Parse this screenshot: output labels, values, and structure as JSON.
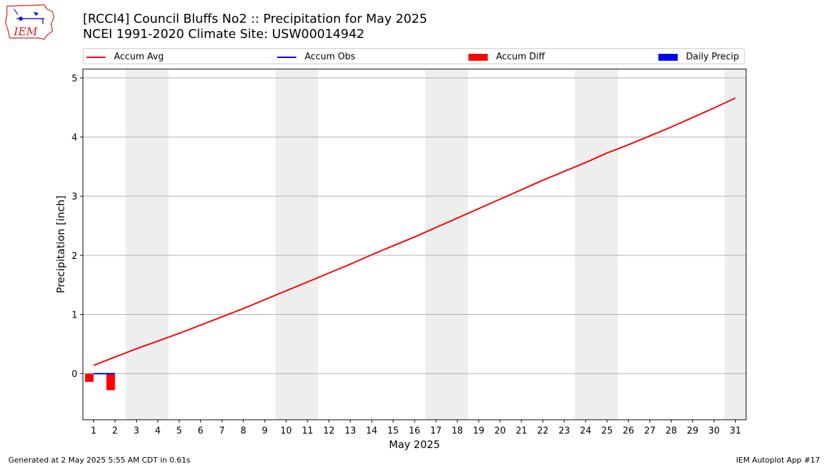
{
  "header": {
    "title_line1": "[RCCI4] Council Bluffs No2 :: Precipitation for May 2025",
    "title_line2": "NCEI 1991-2020 Climate Site: USW00014942"
  },
  "logo": {
    "text": "IEM"
  },
  "legend": {
    "placement": "top, above plot",
    "items": [
      {
        "label": "Accum Avg",
        "kind": "line",
        "color": "#ff0000"
      },
      {
        "label": "Accum Obs",
        "kind": "line",
        "color": "#0000ff"
      },
      {
        "label": "Accum Diff",
        "kind": "box",
        "color": "#ff0000"
      },
      {
        "label": "Daily Precip",
        "kind": "box",
        "color": "#0000ff"
      }
    ]
  },
  "footer": {
    "left": "Generated at 2 May 2025 5:55 AM CDT in 0.61s",
    "right": "IEM Autoplot App #17"
  },
  "chart_data": {
    "type": "line",
    "xlabel": "May 2025",
    "ylabel": "Precipitation [inch]",
    "xlim": [
      0.5,
      31.5
    ],
    "ylim": [
      -0.78,
      5.15
    ],
    "x_ticks": [
      1,
      2,
      3,
      4,
      5,
      6,
      7,
      8,
      9,
      10,
      11,
      12,
      13,
      14,
      15,
      16,
      17,
      18,
      19,
      20,
      21,
      22,
      23,
      24,
      25,
      26,
      27,
      28,
      29,
      30,
      31
    ],
    "y_ticks": [
      0,
      1,
      2,
      3,
      4,
      5
    ],
    "grid": "horizontal",
    "weekend_shading": [
      [
        2.5,
        4.5
      ],
      [
        9.5,
        11.5
      ],
      [
        16.5,
        18.5
      ],
      [
        23.5,
        25.5
      ],
      [
        30.5,
        31.5
      ]
    ],
    "series": [
      {
        "name": "Accum Avg",
        "type": "line",
        "color": "#ff0000",
        "x": [
          1,
          2,
          3,
          4,
          5,
          6,
          7,
          8,
          9,
          10,
          11,
          12,
          13,
          14,
          15,
          16,
          17,
          18,
          19,
          20,
          21,
          22,
          23,
          24,
          25,
          26,
          27,
          28,
          29,
          30,
          31
        ],
        "values": [
          0.14,
          0.28,
          0.42,
          0.55,
          0.68,
          0.82,
          0.96,
          1.1,
          1.25,
          1.4,
          1.55,
          1.7,
          1.85,
          2.01,
          2.16,
          2.31,
          2.47,
          2.63,
          2.79,
          2.95,
          3.11,
          3.27,
          3.42,
          3.57,
          3.73,
          3.87,
          4.02,
          4.17,
          4.33,
          4.49,
          4.66
        ]
      },
      {
        "name": "Accum Obs",
        "type": "line",
        "color": "#0000ff",
        "x": [
          1,
          2
        ],
        "values": [
          0.0,
          0.0
        ]
      },
      {
        "name": "Accum Diff",
        "type": "bar",
        "color": "#ff0000",
        "x": [
          1,
          2
        ],
        "values": [
          -0.14,
          -0.28
        ]
      },
      {
        "name": "Daily Precip",
        "type": "bar",
        "color": "#0000ff",
        "x": [
          1,
          2
        ],
        "values": [
          0.0,
          0.0
        ]
      }
    ]
  }
}
